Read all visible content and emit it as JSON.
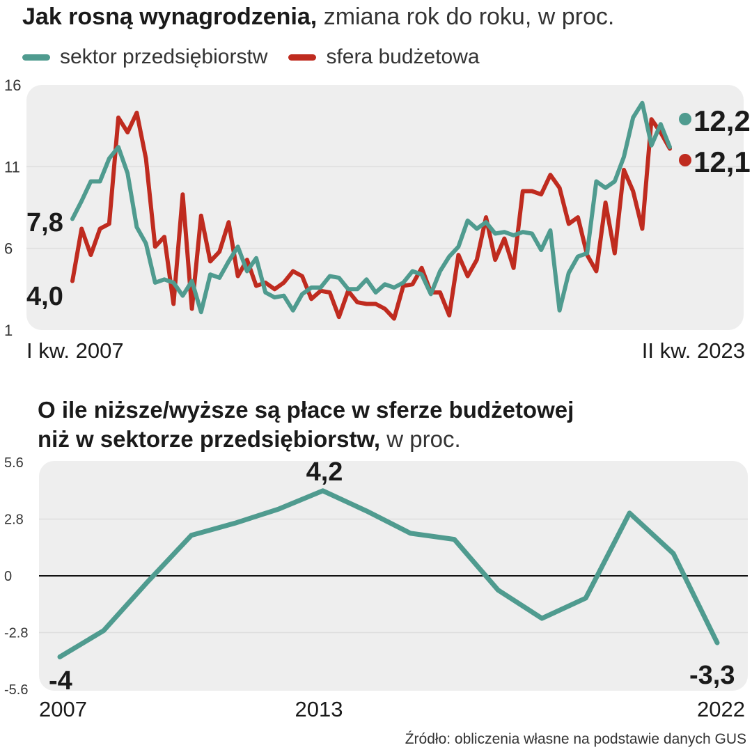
{
  "chart_data": [
    {
      "type": "line",
      "title_bold": "Jak rosną wynagrodzenia,",
      "title_rest": " zmiana rok do roku, w proc.",
      "xlabel_start": "I kw. 2007",
      "xlabel_end": "II kw. 2023",
      "ylim": [
        1,
        16
      ],
      "yticks": [
        "16",
        "11",
        "6",
        "1"
      ],
      "colors": {
        "enterprise": "#4f9b8f",
        "budget": "#bf2b1f"
      },
      "series": [
        {
          "name": "sektor przedsiębiorstw",
          "start_label": "7,8",
          "end_label": "12,2",
          "values": [
            7.8,
            8.9,
            10.1,
            10.1,
            11.5,
            12.2,
            10.6,
            7.3,
            6.3,
            3.9,
            4.1,
            3.9,
            3.1,
            4.0,
            2.1,
            4.4,
            4.2,
            5.2,
            6.1,
            4.6,
            5.4,
            3.3,
            3.0,
            3.1,
            2.2,
            3.2,
            3.6,
            3.6,
            4.3,
            4.2,
            3.5,
            3.5,
            4.1,
            3.3,
            3.8,
            3.6,
            3.9,
            4.6,
            4.4,
            3.2,
            4.6,
            5.5,
            6.1,
            7.7,
            7.2,
            7.6,
            6.9,
            7.0,
            6.8,
            7.0,
            6.9,
            5.9,
            7.1,
            2.2,
            4.5,
            5.5,
            5.7,
            10.1,
            9.7,
            10.1,
            11.6,
            14.0,
            14.9,
            12.3,
            13.6,
            12.2
          ]
        },
        {
          "name": "sfera budżetowa",
          "start_label": "4,0",
          "end_label": "12,1",
          "values": [
            4.0,
            7.2,
            5.6,
            7.2,
            7.5,
            14.0,
            13.1,
            14.3,
            11.5,
            6.1,
            6.7,
            2.6,
            9.3,
            2.3,
            8.0,
            5.2,
            5.8,
            7.6,
            4.3,
            5.3,
            3.7,
            3.9,
            3.5,
            3.9,
            4.6,
            4.3,
            2.9,
            3.4,
            3.3,
            1.8,
            3.4,
            2.7,
            2.6,
            2.6,
            2.3,
            1.7,
            3.7,
            3.8,
            4.8,
            3.3,
            3.3,
            1.9,
            5.6,
            4.3,
            5.3,
            7.9,
            5.3,
            6.6,
            4.8,
            9.5,
            9.5,
            9.3,
            10.5,
            9.7,
            7.5,
            7.9,
            5.6,
            4.6,
            8.8,
            5.7,
            10.8,
            9.5,
            7.2,
            13.9,
            13.1,
            12.1
          ]
        }
      ]
    },
    {
      "type": "line",
      "title_bold_line1": "O ile  niższe/wyższe są płace w sferze budżetowej",
      "title_bold_line2": "niż w sektorze przedsiębiorstw,",
      "title_rest": " w proc.",
      "ylim": [
        -5.6,
        5.6
      ],
      "yticks": [
        "5.6",
        "2.8",
        "0",
        "-2.8",
        "-5.6"
      ],
      "x": [
        2007,
        2008,
        2009,
        2010,
        2011,
        2012,
        2013,
        2014,
        2015,
        2016,
        2017,
        2018,
        2019,
        2020,
        2021,
        2022
      ],
      "x_tick_labels": [
        "2007",
        "2013",
        "2022"
      ],
      "values": [
        -4.0,
        -2.7,
        -0.3,
        2.0,
        2.6,
        3.3,
        4.2,
        3.2,
        2.1,
        1.8,
        -0.7,
        -2.1,
        -1.1,
        3.1,
        1.1,
        -3.3
      ],
      "annotations": {
        "first": "-4",
        "max": "4,2",
        "last": "-3,3"
      },
      "color": "#4f9b8f"
    }
  ],
  "source": "Źródło: obliczenia własne na podstawie danych GUS"
}
